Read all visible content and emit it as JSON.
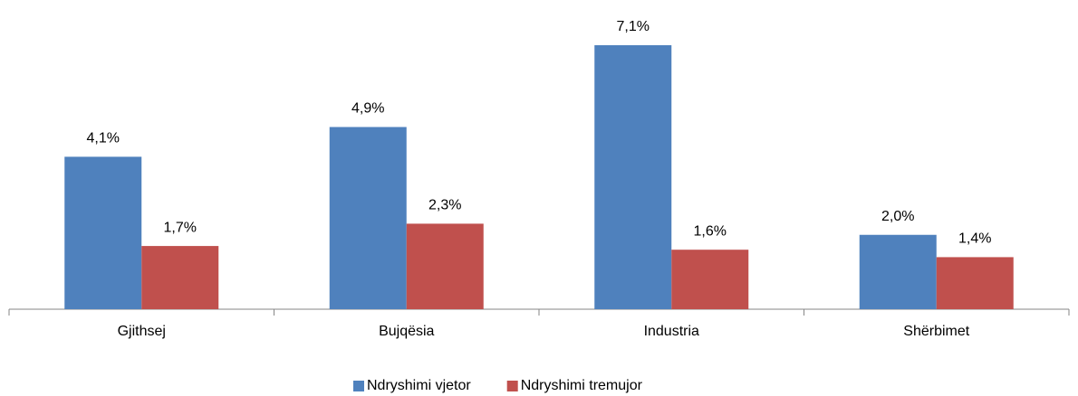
{
  "chart_data": {
    "type": "bar",
    "categories": [
      "Gjithsej",
      "Bujqësia",
      "Industria",
      "Shërbimet"
    ],
    "series": [
      {
        "name": "Ndryshimi vjetor",
        "color": "#4f81bd",
        "values": [
          4.1,
          4.9,
          7.1,
          2.0
        ],
        "value_labels": [
          "4,1%",
          "4,9%",
          "7,1%",
          "2,0%"
        ]
      },
      {
        "name": "Ndryshimi tremujor",
        "color": "#c0504d",
        "values": [
          1.7,
          2.3,
          1.6,
          1.4
        ],
        "value_labels": [
          "1,7%",
          "2,3%",
          "1,6%",
          "1,4%"
        ]
      }
    ],
    "ylim": [
      0,
      8
    ],
    "legend": "bottom"
  }
}
